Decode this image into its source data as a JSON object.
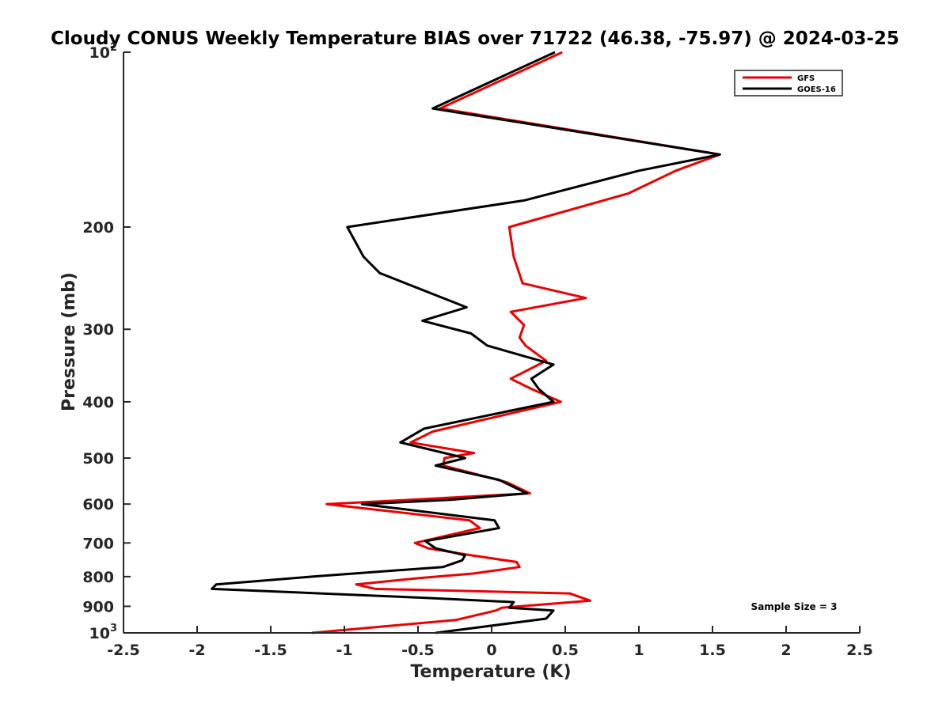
{
  "chart_data": {
    "type": "line",
    "title": "Cloudy CONUS Weekly Temperature BIAS over 71722 (46.38, -75.97) @ 2024-03-25",
    "xlabel": "Temperature (K)",
    "ylabel": "Pressure (mb)",
    "xlim": [
      -2.5,
      2.5
    ],
    "ylim": [
      100,
      1000
    ],
    "yscale": "log",
    "y_reversed": true,
    "grid": false,
    "legend_position": "top-right",
    "x_ticks": [
      "-2.5",
      "-2",
      "-1.5",
      "-1",
      "-0.5",
      "0",
      "0.5",
      "1",
      "1.5",
      "2",
      "2.5"
    ],
    "y_ticks": [
      {
        "value": 100,
        "label": "10",
        "exponent": "2"
      },
      {
        "value": 200,
        "label": "200"
      },
      {
        "value": 300,
        "label": "300"
      },
      {
        "value": 400,
        "label": "400"
      },
      {
        "value": 500,
        "label": "500"
      },
      {
        "value": 600,
        "label": "600"
      },
      {
        "value": 700,
        "label": "700"
      },
      {
        "value": 800,
        "label": "800"
      },
      {
        "value": 900,
        "label": "900"
      },
      {
        "value": 1000,
        "label": "10",
        "exponent": "3"
      }
    ],
    "annotation": "Sample Size = 3",
    "series": [
      {
        "name": "GFS",
        "color": "#ee0000",
        "points": [
          [
            0.48,
            100
          ],
          [
            -0.35,
            125
          ],
          [
            1.55,
            150
          ],
          [
            1.25,
            160
          ],
          [
            0.93,
            175
          ],
          [
            0.12,
            200
          ],
          [
            0.15,
            225
          ],
          [
            0.21,
            250
          ],
          [
            0.64,
            265
          ],
          [
            0.13,
            280
          ],
          [
            0.22,
            295
          ],
          [
            0.19,
            310
          ],
          [
            0.23,
            320
          ],
          [
            0.37,
            340
          ],
          [
            0.13,
            365
          ],
          [
            0.27,
            380
          ],
          [
            0.47,
            400
          ],
          [
            -0.4,
            450
          ],
          [
            -0.55,
            470
          ],
          [
            -0.12,
            490
          ],
          [
            -0.32,
            500
          ],
          [
            -0.33,
            515
          ],
          [
            0.1,
            550
          ],
          [
            0.26,
            575
          ],
          [
            -0.55,
            590
          ],
          [
            -1.12,
            600
          ],
          [
            -0.15,
            640
          ],
          [
            -0.08,
            660
          ],
          [
            -0.52,
            700
          ],
          [
            -0.43,
            715
          ],
          [
            -0.14,
            735
          ],
          [
            0.17,
            755
          ],
          [
            0.19,
            770
          ],
          [
            -0.12,
            790
          ],
          [
            -0.5,
            805
          ],
          [
            -0.92,
            825
          ],
          [
            -0.79,
            840
          ],
          [
            0.53,
            855
          ],
          [
            0.67,
            880
          ],
          [
            0.07,
            905
          ],
          [
            0.03,
            915
          ],
          [
            -0.24,
            950
          ],
          [
            -1.22,
            1000
          ]
        ]
      },
      {
        "name": "GOES-16",
        "color": "#000000",
        "points": [
          [
            0.43,
            100
          ],
          [
            -0.4,
            125
          ],
          [
            1.55,
            150
          ],
          [
            1.0,
            160
          ],
          [
            0.22,
            180
          ],
          [
            -0.98,
            200
          ],
          [
            -0.87,
            225
          ],
          [
            -0.76,
            240
          ],
          [
            -0.17,
            275
          ],
          [
            -0.47,
            290
          ],
          [
            -0.14,
            305
          ],
          [
            -0.03,
            320
          ],
          [
            0.42,
            345
          ],
          [
            0.27,
            365
          ],
          [
            0.32,
            380
          ],
          [
            0.42,
            400
          ],
          [
            -0.46,
            445
          ],
          [
            -0.62,
            470
          ],
          [
            -0.18,
            500
          ],
          [
            -0.38,
            515
          ],
          [
            0.05,
            545
          ],
          [
            0.24,
            575
          ],
          [
            -0.28,
            590
          ],
          [
            -0.88,
            600
          ],
          [
            0.02,
            640
          ],
          [
            0.05,
            660
          ],
          [
            -0.45,
            695
          ],
          [
            -0.38,
            715
          ],
          [
            -0.18,
            735
          ],
          [
            -0.2,
            750
          ],
          [
            -0.33,
            770
          ],
          [
            -1.22,
            800
          ],
          [
            -1.87,
            825
          ],
          [
            -1.9,
            840
          ],
          [
            -0.46,
            870
          ],
          [
            0.15,
            885
          ],
          [
            0.12,
            905
          ],
          [
            0.42,
            915
          ],
          [
            0.37,
            945
          ],
          [
            -0.38,
            1000
          ]
        ]
      }
    ]
  }
}
